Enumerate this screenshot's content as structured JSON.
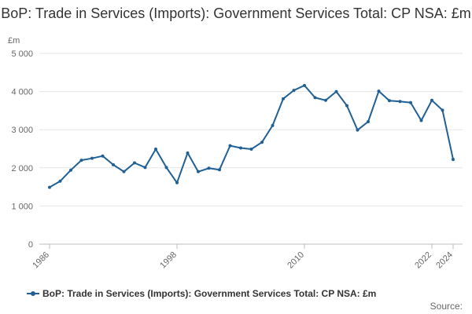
{
  "chart_data": {
    "type": "line",
    "title": "BoP: Trade in Services (Imports): Government Services Total: CP NSA: £m",
    "unit_label": "£m",
    "x": [
      1986,
      1987,
      1988,
      1989,
      1990,
      1991,
      1992,
      1993,
      1994,
      1995,
      1996,
      1997,
      1998,
      1999,
      2000,
      2001,
      2002,
      2003,
      2004,
      2005,
      2006,
      2007,
      2008,
      2009,
      2010,
      2011,
      2012,
      2013,
      2014,
      2015,
      2016,
      2017,
      2018,
      2019,
      2020,
      2021,
      2022,
      2023,
      2024
    ],
    "series": [
      {
        "name": "BoP: Trade in Services (Imports): Government Services Total: CP NSA: £m",
        "color": "#206095",
        "values": [
          1490,
          1650,
          1940,
          2200,
          2250,
          2310,
          2080,
          1900,
          2130,
          2010,
          2490,
          2010,
          1610,
          2390,
          1900,
          1990,
          1950,
          2580,
          2520,
          2490,
          2670,
          3110,
          3810,
          4030,
          4160,
          3840,
          3770,
          4000,
          3630,
          2990,
          3210,
          4010,
          3760,
          3740,
          3710,
          3240,
          3770,
          3510,
          2220
        ]
      }
    ],
    "x_tick_labels": [
      "1986",
      "1998",
      "2010",
      "2022",
      "2024"
    ],
    "y_tick_labels": [
      "0",
      "1 000",
      "2 000",
      "3 000",
      "4 000",
      "5 000"
    ],
    "ylim": [
      0,
      5000
    ],
    "grid": true,
    "legend_position": "bottom"
  },
  "source_label": "Source:"
}
